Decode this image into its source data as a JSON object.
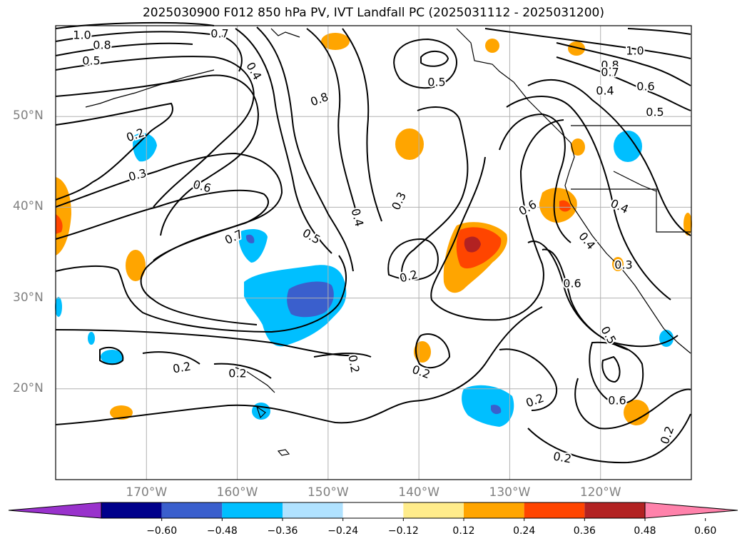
{
  "title": "2025030900 F012 850 hPa PV, IVT Landfall PC (2025031112 - 2025031200)",
  "map": {
    "projection": "lat-lon",
    "lon_range": [
      -180,
      -110
    ],
    "lat_range": [
      10,
      60
    ],
    "lat_ticks": [
      {
        "value": 20,
        "label": "20°N"
      },
      {
        "value": 30,
        "label": "30°N"
      },
      {
        "value": 40,
        "label": "40°N"
      },
      {
        "value": 50,
        "label": "50°N"
      }
    ],
    "lon_ticks": [
      {
        "value": -170,
        "label": "170°W"
      },
      {
        "value": -160,
        "label": "160°W"
      },
      {
        "value": -150,
        "label": "150°W"
      },
      {
        "value": -140,
        "label": "140°W"
      },
      {
        "value": -130,
        "label": "130°W"
      },
      {
        "value": -120,
        "label": "120°W"
      }
    ],
    "gridlines": true,
    "contour_labels": [
      "1.0",
      "0.8",
      "0.5",
      "0.7",
      "0.4",
      "0.8",
      "0.5",
      "1.0",
      "0.8",
      "0.7",
      "0.4",
      "0.6",
      "0.5",
      "0.2",
      "0.3",
      "0.6",
      "0.3",
      "0.4",
      "0.6",
      "0.4",
      "0.7",
      "0.5",
      "0.2",
      "0.4",
      "0.3",
      "0.6",
      "0.2",
      "0.2",
      "0.2",
      "0.2",
      "0.5",
      "0.6",
      "0.2",
      "0.2",
      "0.2"
    ],
    "contour_color": "#000000"
  },
  "colorbar": {
    "extend": "both",
    "colors": [
      "#9932cc",
      "#00008b",
      "#3a5fcd",
      "#00bfff",
      "#b0e2ff",
      "#ffffff",
      "#ffec8b",
      "#ffa500",
      "#ff4500",
      "#b22222",
      "#ff82ab"
    ],
    "tick_labels": [
      "−0.60",
      "−0.48",
      "−0.36",
      "−0.24",
      "−0.12",
      "0.12",
      "0.24",
      "0.36",
      "0.48",
      "0.60"
    ]
  },
  "legend_colors": {
    "neg_strong": "#3a5fcd",
    "neg_mid": "#00bfff",
    "neg_weak": "#b0e2ff",
    "pos_weak": "#ffec8b",
    "pos_mid": "#ffa500",
    "pos_strong": "#ff4500",
    "pos_max": "#b22222"
  }
}
